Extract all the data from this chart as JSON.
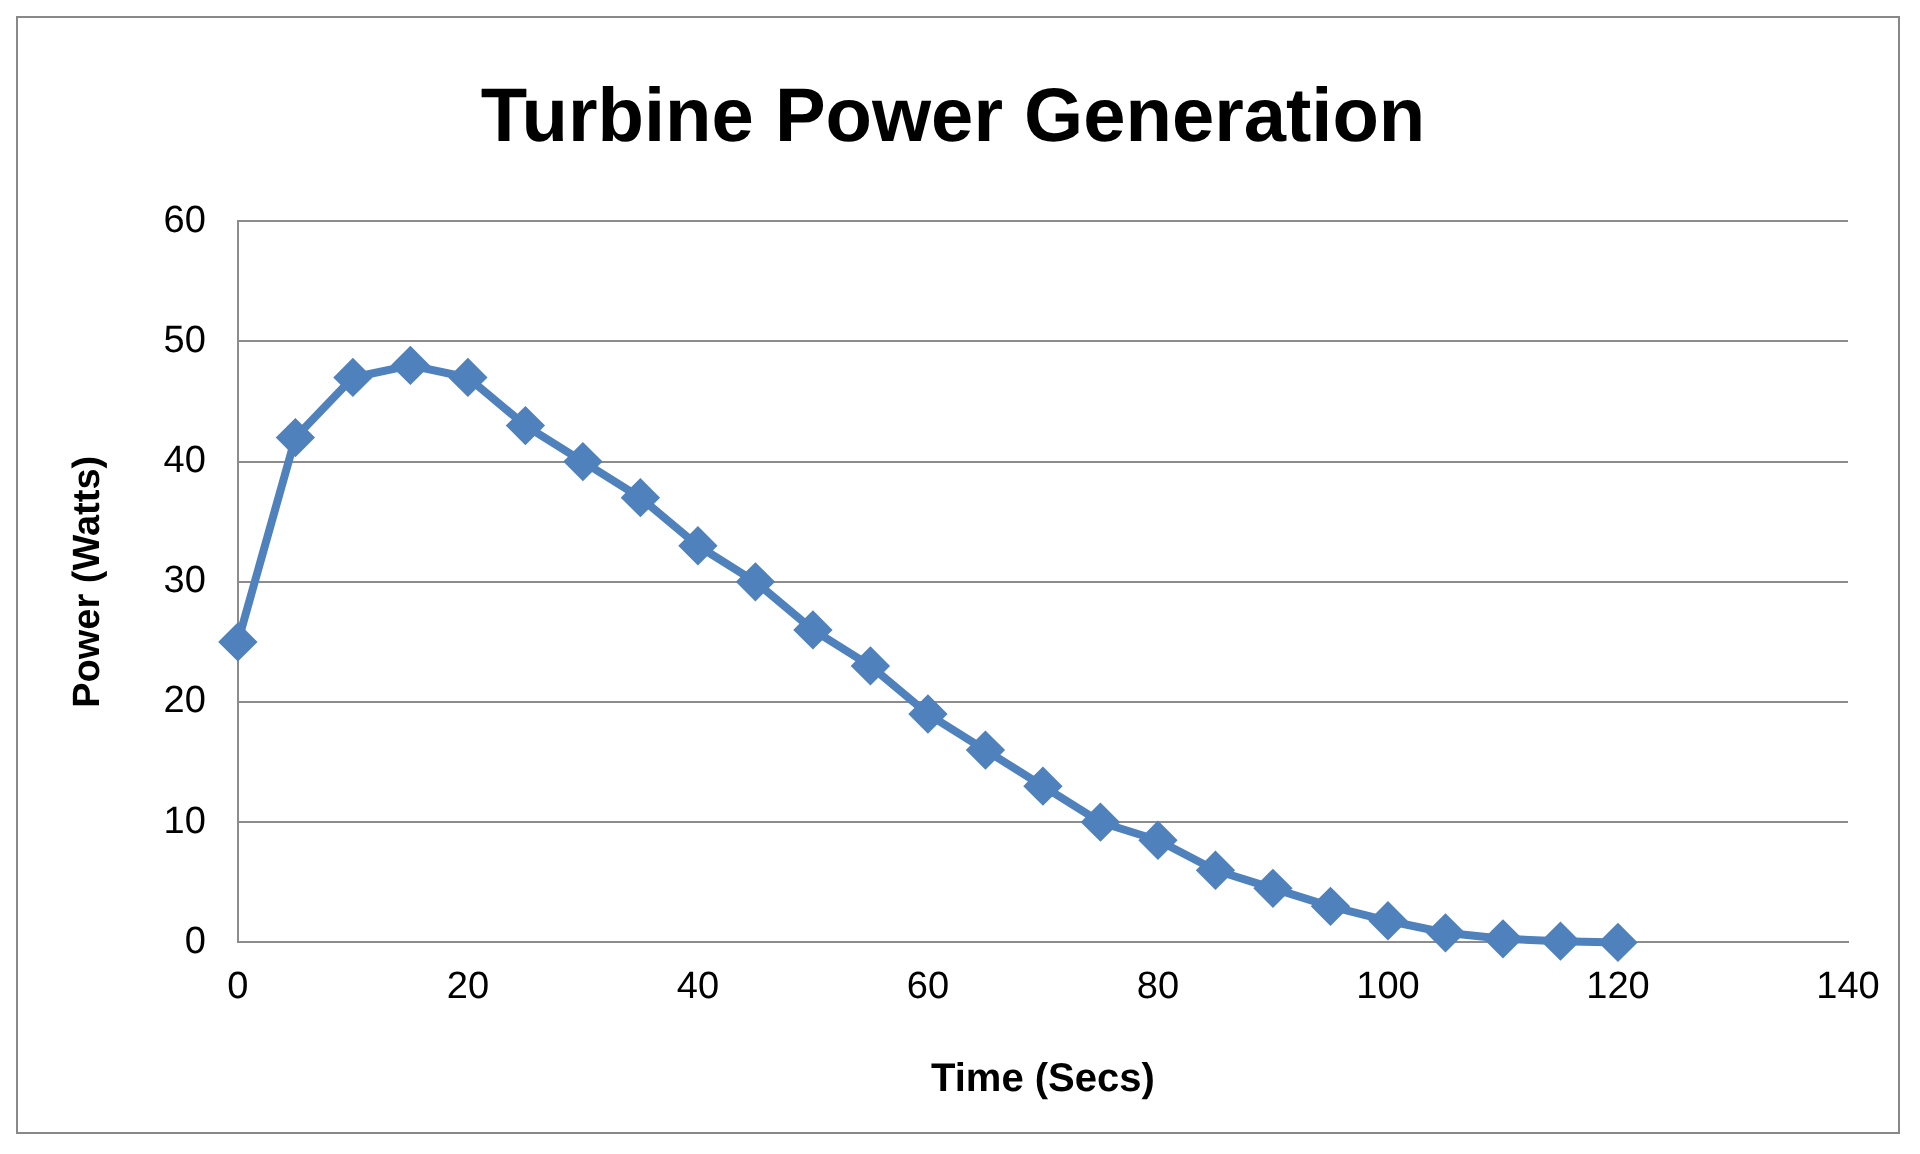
{
  "chart_data": {
    "type": "line",
    "title": "Turbine Power Generation",
    "xlabel": "Time (Secs)",
    "ylabel": "Power (Watts)",
    "x": [
      0,
      5,
      10,
      15,
      20,
      25,
      30,
      35,
      40,
      45,
      50,
      55,
      60,
      65,
      70,
      75,
      80,
      85,
      90,
      95,
      100,
      105,
      110,
      115,
      120
    ],
    "series": [
      {
        "color": "#4f81bd",
        "values": [
          25,
          42,
          47,
          48,
          47,
          43,
          40,
          37,
          33,
          30,
          26,
          23,
          19,
          16,
          13,
          10,
          8.5,
          6,
          4.5,
          3,
          1.8,
          0.8,
          0.3,
          0.1,
          0
        ]
      }
    ],
    "xlim": [
      0,
      140
    ],
    "xticks": [
      0,
      20,
      40,
      60,
      80,
      100,
      120,
      140
    ],
    "ylim": [
      0,
      60
    ],
    "yticks": [
      0,
      10,
      20,
      30,
      40,
      50,
      60
    ],
    "grid": "y",
    "legend": false,
    "marker": "diamond",
    "line_style": "solid"
  }
}
